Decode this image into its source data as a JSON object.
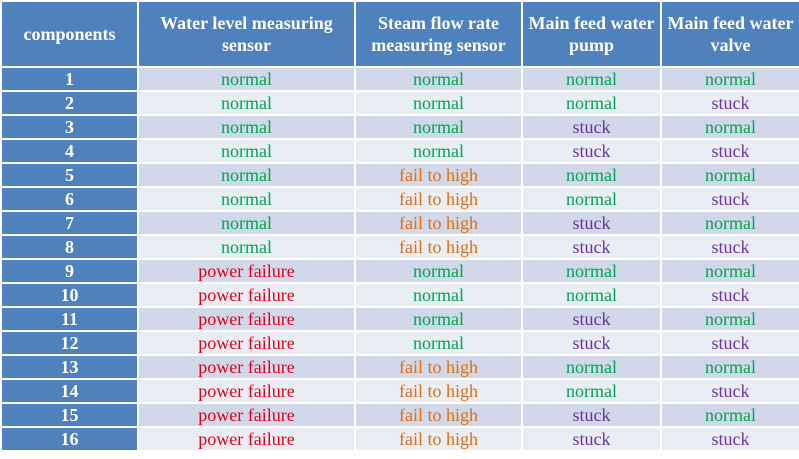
{
  "headers": [
    "components",
    "Water level measuring sensor",
    "Steam flow rate measuring sensor",
    "Main feed water pump",
    "Main feed water valve"
  ],
  "status_colors": {
    "normal": "#00a651",
    "stuck": "#7030a0",
    "fail to high": "#e46c0a",
    "power failure": "#e0001b",
    "header_bg": "#4f81bd"
  },
  "rows": [
    [
      "1",
      "normal",
      "normal",
      "normal",
      "normal"
    ],
    [
      "2",
      "normal",
      "normal",
      "normal",
      "stuck"
    ],
    [
      "3",
      "normal",
      "normal",
      "stuck",
      "normal"
    ],
    [
      "4",
      "normal",
      "normal",
      "stuck",
      "stuck"
    ],
    [
      "5",
      "normal",
      "fail to high",
      "normal",
      "normal"
    ],
    [
      "6",
      "normal",
      "fail to high",
      "normal",
      "stuck"
    ],
    [
      "7",
      "normal",
      "fail to high",
      "stuck",
      "normal"
    ],
    [
      "8",
      "normal",
      "fail to high",
      "stuck",
      "stuck"
    ],
    [
      "9",
      "power failure",
      "normal",
      "normal",
      "normal"
    ],
    [
      "10",
      "power failure",
      "normal",
      "normal",
      "stuck"
    ],
    [
      "11",
      "power failure",
      "normal",
      "stuck",
      "normal"
    ],
    [
      "12",
      "power failure",
      "normal",
      "stuck",
      "stuck"
    ],
    [
      "13",
      "power failure",
      "fail to high",
      "normal",
      "normal"
    ],
    [
      "14",
      "power failure",
      "fail to high",
      "normal",
      "stuck"
    ],
    [
      "15",
      "power failure",
      "fail to high",
      "stuck",
      "normal"
    ],
    [
      "16",
      "power failure",
      "fail to high",
      "stuck",
      "stuck"
    ]
  ]
}
